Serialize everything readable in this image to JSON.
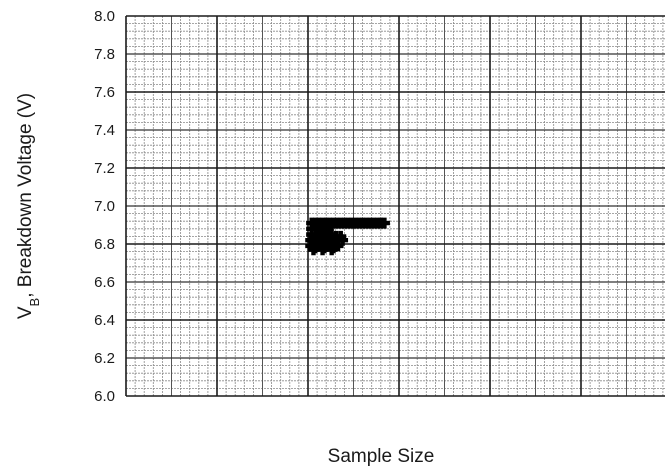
{
  "chart_data": {
    "type": "scatter",
    "title": "",
    "xlabel": "Sample Size",
    "ylabel": {
      "prefix": "V",
      "subscript": "B",
      "rest": ", Breakdown Voltage (V)"
    },
    "ylim": [
      6.0,
      8.0
    ],
    "xlim": [
      0,
      6
    ],
    "y_ticks": [
      "6.0",
      "6.2",
      "6.4",
      "6.6",
      "6.8",
      "7.0",
      "7.2",
      "7.4",
      "7.6",
      "7.8",
      "8.0"
    ],
    "grid": true,
    "legend": "none",
    "marker_color": "#000000",
    "series": [
      {
        "points": [
          {
            "x": 2.04,
            "y": 6.91
          },
          {
            "x": 2.08,
            "y": 6.91
          },
          {
            "x": 2.12,
            "y": 6.91
          },
          {
            "x": 2.16,
            "y": 6.91
          },
          {
            "x": 2.2,
            "y": 6.91
          },
          {
            "x": 2.24,
            "y": 6.91
          },
          {
            "x": 2.28,
            "y": 6.91
          },
          {
            "x": 2.32,
            "y": 6.91
          },
          {
            "x": 2.36,
            "y": 6.91
          },
          {
            "x": 2.4,
            "y": 6.91
          },
          {
            "x": 2.44,
            "y": 6.91
          },
          {
            "x": 2.48,
            "y": 6.91
          },
          {
            "x": 2.52,
            "y": 6.91
          },
          {
            "x": 2.56,
            "y": 6.91
          },
          {
            "x": 2.6,
            "y": 6.91
          },
          {
            "x": 2.64,
            "y": 6.91
          },
          {
            "x": 2.68,
            "y": 6.91
          },
          {
            "x": 2.72,
            "y": 6.91
          },
          {
            "x": 2.76,
            "y": 6.91
          },
          {
            "x": 2.8,
            "y": 6.91
          },
          {
            "x": 2.84,
            "y": 6.91
          },
          {
            "x": 2.04,
            "y": 6.88
          },
          {
            "x": 2.1,
            "y": 6.88
          },
          {
            "x": 2.16,
            "y": 6.87
          },
          {
            "x": 2.22,
            "y": 6.88
          },
          {
            "x": 2.04,
            "y": 6.85
          },
          {
            "x": 2.09,
            "y": 6.84
          },
          {
            "x": 2.14,
            "y": 6.85
          },
          {
            "x": 2.2,
            "y": 6.84
          },
          {
            "x": 2.26,
            "y": 6.85
          },
          {
            "x": 2.31,
            "y": 6.84
          },
          {
            "x": 2.36,
            "y": 6.84
          },
          {
            "x": 2.03,
            "y": 6.82
          },
          {
            "x": 2.08,
            "y": 6.81
          },
          {
            "x": 2.13,
            "y": 6.82
          },
          {
            "x": 2.18,
            "y": 6.81
          },
          {
            "x": 2.23,
            "y": 6.82
          },
          {
            "x": 2.28,
            "y": 6.81
          },
          {
            "x": 2.33,
            "y": 6.82
          },
          {
            "x": 2.38,
            "y": 6.82
          },
          {
            "x": 2.03,
            "y": 6.79
          },
          {
            "x": 2.08,
            "y": 6.78
          },
          {
            "x": 2.13,
            "y": 6.79
          },
          {
            "x": 2.18,
            "y": 6.78
          },
          {
            "x": 2.23,
            "y": 6.79
          },
          {
            "x": 2.28,
            "y": 6.78
          },
          {
            "x": 2.33,
            "y": 6.79
          },
          {
            "x": 2.06,
            "y": 6.77
          },
          {
            "x": 2.16,
            "y": 6.77
          },
          {
            "x": 2.26,
            "y": 6.77
          }
        ]
      }
    ]
  }
}
